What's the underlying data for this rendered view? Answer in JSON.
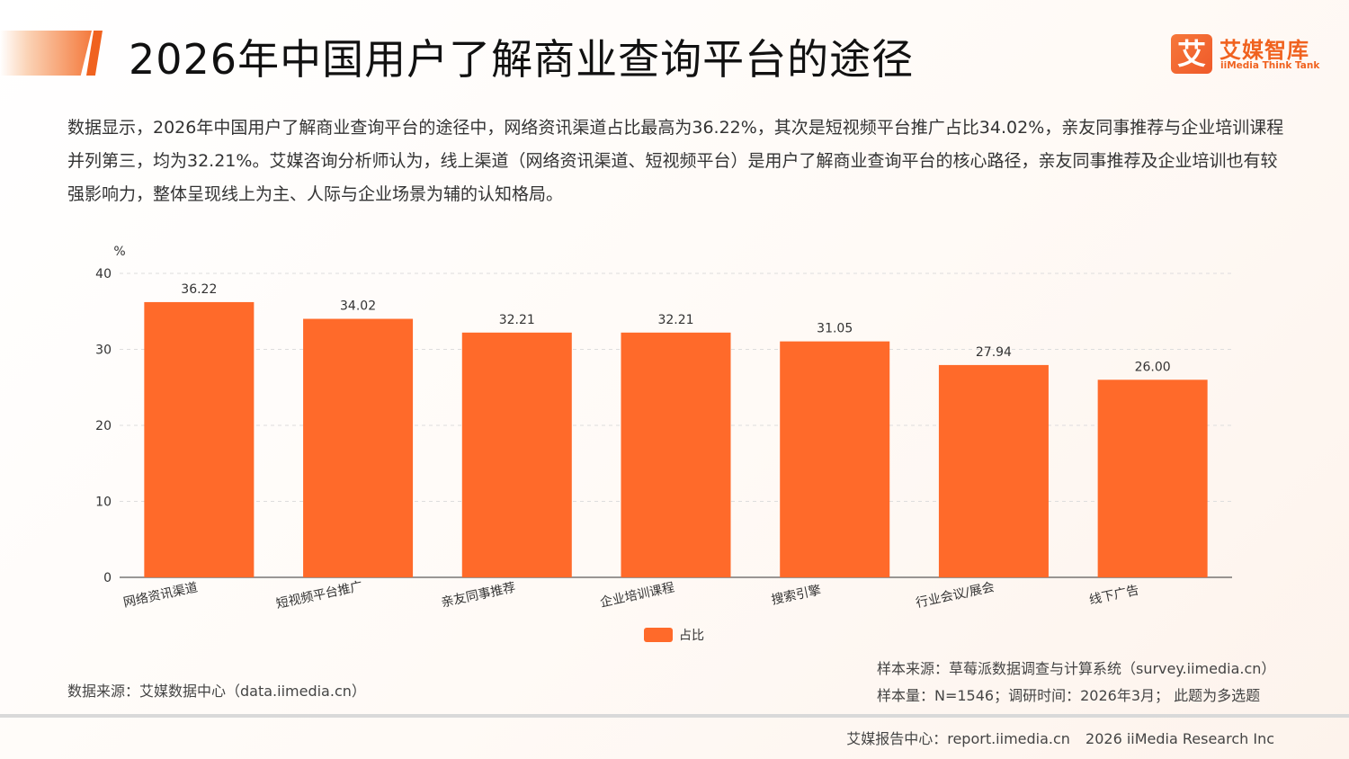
{
  "header": {
    "title": "2026年中国用户了解商业查询平台的途径",
    "logo_mark": "艾",
    "logo_cn": "艾媒智库",
    "logo_en": "iiMedia Think Tank"
  },
  "summary": "数据显示，2026年中国用户了解商业查询平台的途径中，网络资讯渠道占比最高为36.22%，其次是短视频平台推广占比34.02%，亲友同事推荐与企业培训课程并列第三，均为32.21%。艾媒咨询分析师认为，线上渠道（网络资讯渠道、短视频平台）是用户了解商业查询平台的核心路径，亲友同事推荐及企业培训也有较强影响力，整体呈现线上为主、人际与企业场景为辅的认知格局。",
  "chart_data": {
    "type": "bar",
    "title": "",
    "xlabel": "",
    "ylabel": "%",
    "ylim": [
      0,
      40
    ],
    "yticks": [
      0,
      10,
      20,
      30,
      40
    ],
    "grid": true,
    "legend_position": "bottom",
    "categories": [
      "网络资讯渠道",
      "短视频平台推广",
      "亲友同事推荐",
      "企业培训课程",
      "搜索引擎",
      "行业会议/展会",
      "线下广告"
    ],
    "series": [
      {
        "name": "占比",
        "color": "#ff6a2a",
        "values": [
          36.22,
          34.02,
          32.21,
          32.21,
          31.05,
          27.94,
          26.0
        ],
        "labels": [
          "36.22",
          "34.02",
          "32.21",
          "32.21",
          "31.05",
          "27.94",
          "26.00"
        ]
      }
    ]
  },
  "footer": {
    "data_source": "数据来源：艾媒数据中心（data.iimedia.cn）",
    "sample_source": "样本来源：草莓派数据调查与计算系统（survey.iimedia.cn）",
    "sample_info": "样本量：N=1546；调研时间：2026年3月；  此题为多选题",
    "report_center": "艾媒报告中心：report.iimedia.cn",
    "copyright": "2026 iiMedia Research Inc"
  }
}
